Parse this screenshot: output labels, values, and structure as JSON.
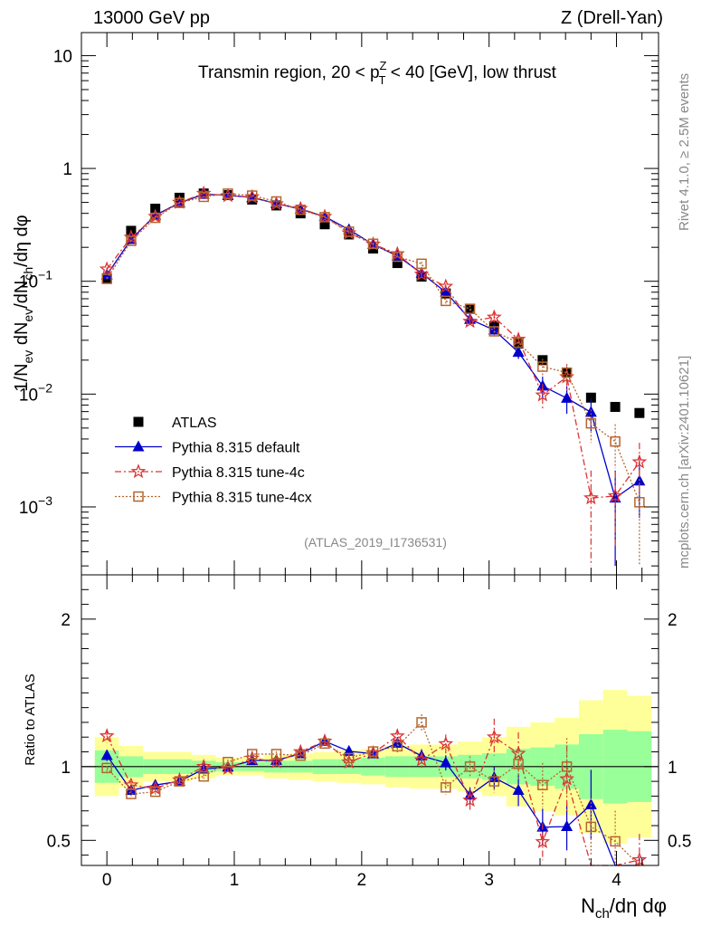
{
  "chart_data": {
    "type": "scatter",
    "header": {
      "left": "13000 GeV pp",
      "right": "Z (Drell-Yan)"
    },
    "title": "Transmin region, 20 < p_T^Z < 40 [GeV], low thrust",
    "title_parts": {
      "pre": "Transmin region, 20 < p",
      "sup": "Z",
      "sub": "T",
      "post": " < 40 [GeV], low thrust"
    },
    "analysis_id": "(ATLAS_2019_I1736531)",
    "side_label_top": "Rivet 4.1.0, ≥ 2.5M events",
    "side_label_bottom": "mcplots.cern.ch [arXiv:2401.10621]",
    "ylabel": "1/N_ev dN_ev/dN_ch/dη dφ",
    "ylabel_parts": {
      "a": "1/N",
      "a_sub": "ev",
      "b": " dN",
      "b_sub": "ev",
      "c": "/dN",
      "c_sub": "ch",
      "d": "/dη dφ"
    },
    "ratio_ylabel": "Ratio to ATLAS",
    "xlabel": "N_ch/dη dφ",
    "xlabel_parts": {
      "a": "N",
      "a_sub": "ch",
      "b": "/dη dφ"
    },
    "xlim": [
      -0.2,
      4.33
    ],
    "ylim": [
      0.00025,
      16
    ],
    "ratio_ylim": [
      0.33,
      2.3
    ],
    "log_y": true,
    "x_ticks": [
      "0",
      "1",
      "2",
      "3",
      "4"
    ],
    "y_ticks": [
      {
        "value": 10,
        "base": "10",
        "exp": ""
      },
      {
        "value": 1,
        "base": "1",
        "exp": ""
      },
      {
        "value": 0.1,
        "base": "10",
        "exp": "−1"
      },
      {
        "value": 0.01,
        "base": "10",
        "exp": "−2"
      },
      {
        "value": 0.001,
        "base": "10",
        "exp": "−3"
      }
    ],
    "ratio_y_ticks": [
      "0.5",
      "1",
      "2"
    ],
    "x": [
      0.0,
      0.19,
      0.38,
      0.57,
      0.76,
      0.95,
      1.14,
      1.33,
      1.52,
      1.71,
      1.9,
      2.09,
      2.28,
      2.47,
      2.66,
      2.85,
      3.04,
      3.23,
      3.42,
      3.61,
      3.8,
      3.99,
      4.18
    ],
    "reference": {
      "name": "ATLAS",
      "values": [
        0.106,
        0.28,
        0.44,
        0.55,
        0.6,
        0.58,
        0.53,
        0.47,
        0.4,
        0.32,
        0.26,
        0.195,
        0.145,
        0.11,
        0.078,
        0.057,
        0.04,
        0.028,
        0.02,
        0.0155,
        0.0093,
        0.0077,
        0.0068
      ],
      "band_inner": [
        0.11,
        0.07,
        0.05,
        0.05,
        0.04,
        0.03,
        0.03,
        0.04,
        0.04,
        0.05,
        0.05,
        0.06,
        0.07,
        0.07,
        0.07,
        0.08,
        0.09,
        0.12,
        0.13,
        0.15,
        0.22,
        0.25,
        0.24
      ],
      "band_outer": [
        0.2,
        0.14,
        0.1,
        0.1,
        0.08,
        0.06,
        0.06,
        0.08,
        0.09,
        0.1,
        0.11,
        0.12,
        0.14,
        0.15,
        0.15,
        0.17,
        0.2,
        0.27,
        0.3,
        0.33,
        0.45,
        0.52,
        0.48
      ]
    },
    "series": [
      {
        "name": "Pythia 8.315 default",
        "color": "#0000cc",
        "marker": "triangle",
        "line": "solid",
        "values": [
          0.114,
          0.235,
          0.385,
          0.495,
          0.59,
          0.578,
          0.552,
          0.49,
          0.435,
          0.375,
          0.287,
          0.212,
          0.168,
          0.118,
          0.08,
          0.046,
          0.037,
          0.0235,
          0.0118,
          0.0092,
          0.0069,
          0.0012,
          0.0017
        ],
        "errors": [
          0.004,
          0.006,
          0.008,
          0.009,
          0.01,
          0.01,
          0.01,
          0.009,
          0.008,
          0.008,
          0.007,
          0.006,
          0.006,
          0.005,
          0.004,
          0.003,
          0.003,
          0.003,
          0.0025,
          0.0025,
          0.0022,
          0.0009,
          0.0009
        ]
      },
      {
        "name": "Pythia 8.315 tune-4c",
        "color": "#dd3333",
        "marker": "star",
        "line": "dashdot",
        "values": [
          0.128,
          0.245,
          0.375,
          0.5,
          0.6,
          0.573,
          0.56,
          0.485,
          0.44,
          0.375,
          0.268,
          0.213,
          0.175,
          0.115,
          0.09,
          0.044,
          0.048,
          0.0305,
          0.0098,
          0.0142,
          0.0012,
          0.00125,
          0.0025
        ],
        "errors": [
          0.005,
          0.007,
          0.009,
          0.01,
          0.011,
          0.011,
          0.011,
          0.01,
          0.009,
          0.009,
          0.008,
          0.007,
          0.007,
          0.006,
          0.005,
          0.004,
          0.005,
          0.004,
          0.0025,
          0.0035,
          0.0009,
          0.0008,
          0.0012
        ]
      },
      {
        "name": "Pythia 8.315 tune-4cx",
        "color": "#b5652e",
        "marker": "square",
        "line": "dotted",
        "values": [
          0.105,
          0.228,
          0.365,
          0.495,
          0.56,
          0.598,
          0.575,
          0.51,
          0.43,
          0.37,
          0.275,
          0.215,
          0.165,
          0.143,
          0.067,
          0.057,
          0.036,
          0.0285,
          0.0175,
          0.0155,
          0.0055,
          0.0038,
          0.0011
        ],
        "errors": [
          0.004,
          0.006,
          0.008,
          0.009,
          0.01,
          0.01,
          0.01,
          0.009,
          0.008,
          0.008,
          0.007,
          0.006,
          0.006,
          0.006,
          0.004,
          0.004,
          0.003,
          0.003,
          0.003,
          0.003,
          0.0018,
          0.0016,
          0.0008
        ]
      }
    ],
    "legend_position": "bottom-left",
    "grid": false
  }
}
